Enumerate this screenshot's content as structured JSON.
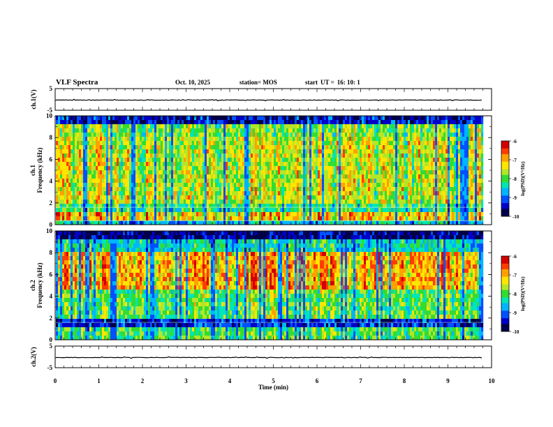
{
  "header": {
    "title": "VLF Spectra",
    "date": "Oct. 10, 2025",
    "station": "station= MOS",
    "start_label": "start",
    "ut_label": "UT =",
    "start_time": "16: 10: 1"
  },
  "colors": {
    "cmap": [
      "#00004a",
      "#0000c8",
      "#0050ff",
      "#00b4ff",
      "#00e6b4",
      "#32dc32",
      "#b4e628",
      "#ffe600",
      "#ffa000",
      "#ff3c00",
      "#d20000",
      "#ffd2d2"
    ]
  },
  "chart_data": [
    {
      "type": "line",
      "id": "ch1-waveform",
      "ylabel": "ch.1(V)",
      "ylim": [
        -5,
        5
      ],
      "yticks": [
        "5",
        "-5"
      ],
      "level": -0.3,
      "xlim": [
        0,
        10
      ]
    },
    {
      "type": "heatmap",
      "id": "ch1-spectrogram",
      "ylabel_top": "ch.1",
      "ylabel": "Frequency (kHz)",
      "ylim": [
        0,
        10
      ],
      "yticks": [
        "0",
        "2",
        "4",
        "6",
        "8",
        "10"
      ],
      "xlim": [
        0,
        10
      ],
      "data_end_min": 9.8,
      "colorbar": {
        "label": "log(PSD)(V²/Hz)",
        "range": [
          -10,
          -6
        ],
        "ticks": [
          "-6",
          "-7",
          "-8",
          "-9",
          "-10"
        ]
      }
    },
    {
      "type": "heatmap",
      "id": "ch2-spectrogram",
      "ylabel_top": "ch.2",
      "ylabel": "Frequency (kHz)",
      "ylim": [
        0,
        10
      ],
      "yticks": [
        "0",
        "2",
        "4",
        "6",
        "8",
        "10"
      ],
      "xlim": [
        0,
        10
      ],
      "data_end_min": 9.8,
      "colorbar": {
        "label": "log(PSD)(V²/Hz)",
        "range": [
          -10,
          -6
        ],
        "ticks": [
          "-6",
          "-7",
          "-8",
          "-9",
          "-10"
        ]
      }
    },
    {
      "type": "line",
      "id": "ch2-waveform",
      "ylabel": "ch.2(V)",
      "ylim": [
        -5,
        5
      ],
      "yticks": [
        "5",
        "-5"
      ],
      "level": -0.3,
      "xlim": [
        0,
        10
      ],
      "xlabel": "Time  (min)",
      "xticks": [
        "0",
        "1",
        "2",
        "3",
        "4",
        "5",
        "6",
        "7",
        "8",
        "9",
        "10"
      ]
    }
  ]
}
